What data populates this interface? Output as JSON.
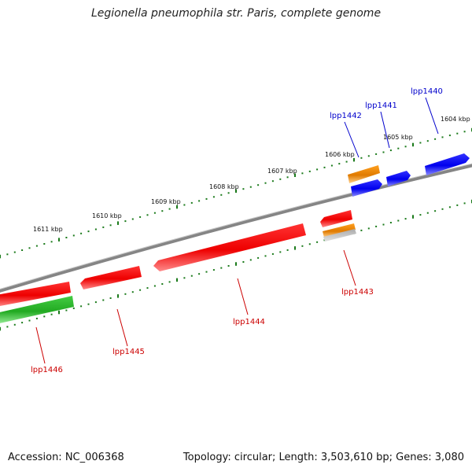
{
  "title": "Legionella pneumophila str. Paris, complete genome",
  "footer": {
    "accession": "Accession: NC_006368",
    "summary": "Topology: circular; Length: 3,503,610 bp; Genes: 3,080"
  },
  "colors": {
    "backbone": "#888888",
    "tick": "#1a7a1a",
    "forward_label": "#0000cc",
    "reverse_label": "#cc0000",
    "red": "#ee1111",
    "blue": "#1111ee",
    "orange": "#f08a00",
    "green": "#33bb33",
    "gray": "#bbbbbb"
  },
  "scale_labels": [
    "1611 kbp",
    "1610 kbp",
    "1609 kbp",
    "1608 kbp",
    "1607 kbp",
    "1606 kbp",
    "1605 kbp",
    "1604 kbp"
  ],
  "gene_labels": [
    {
      "text": "lpp1440",
      "strand": "forward"
    },
    {
      "text": "lpp1441",
      "strand": "forward"
    },
    {
      "text": "lpp1442",
      "strand": "forward"
    },
    {
      "text": "lpp1443",
      "strand": "reverse"
    },
    {
      "text": "lpp1444",
      "strand": "reverse"
    },
    {
      "text": "lpp1445",
      "strand": "reverse"
    },
    {
      "text": "lpp1446",
      "strand": "reverse"
    }
  ]
}
